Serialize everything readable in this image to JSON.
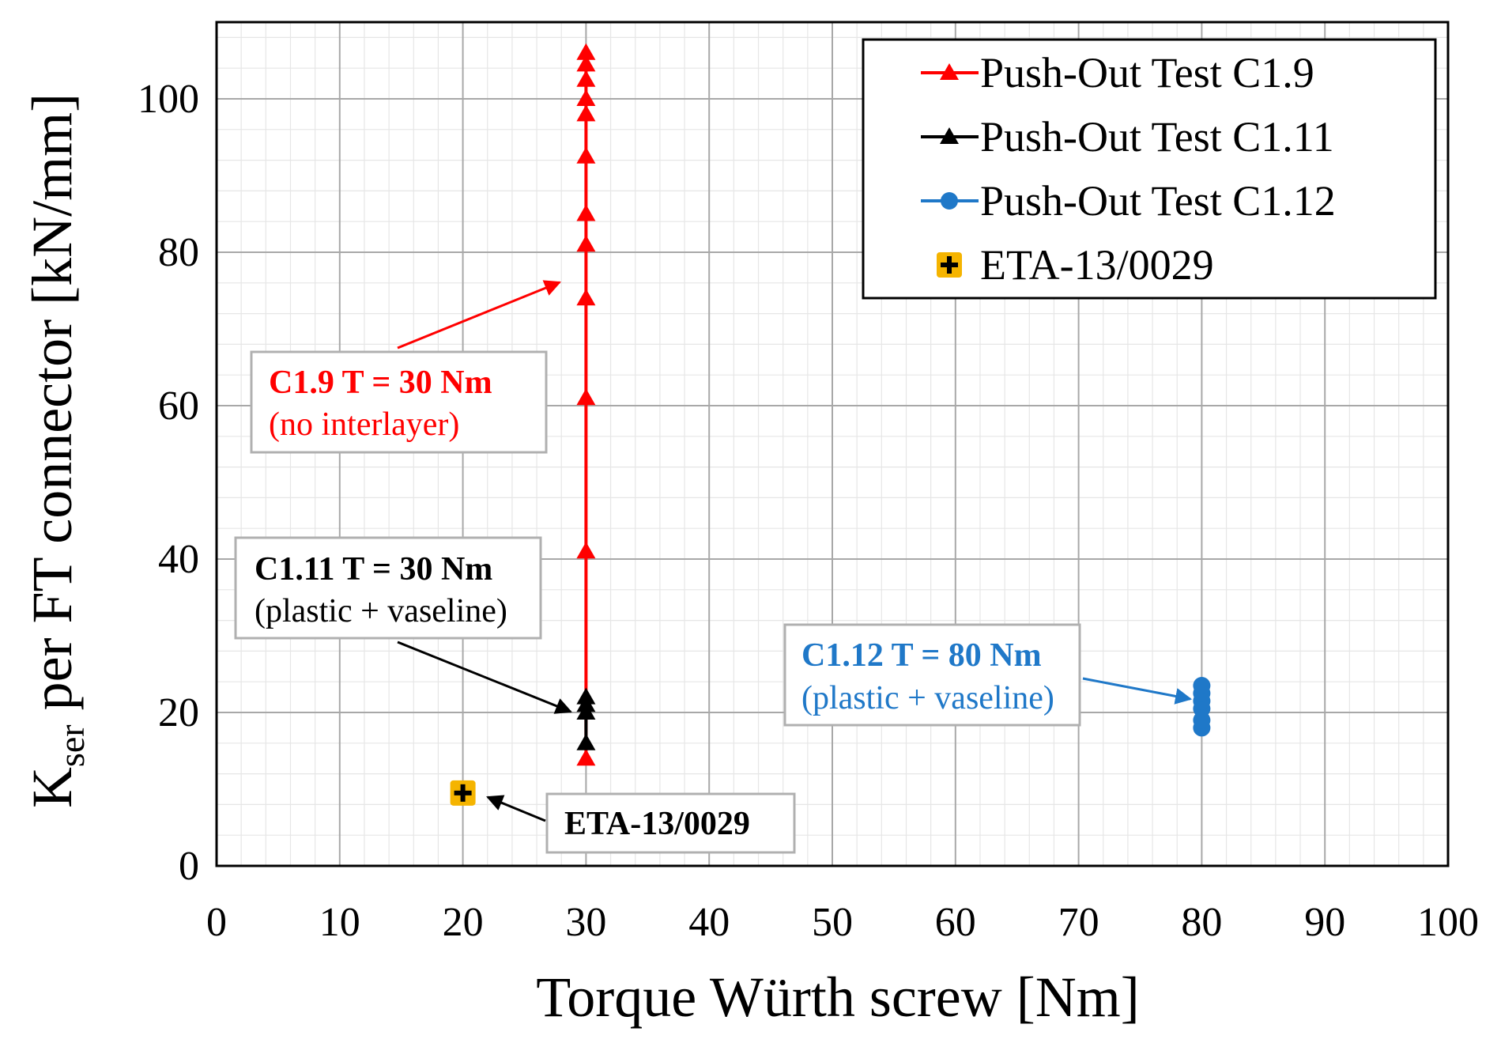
{
  "chart_data": {
    "type": "scatter",
    "title": "",
    "xlabel": "Torque Würth screw [Nm]",
    "ylabel": {
      "main": "K",
      "sub": "ser",
      "rest": " per FT connector [kN/mm]"
    },
    "xlim": [
      0,
      100
    ],
    "ylim": [
      0,
      110
    ],
    "xticks": [
      0,
      10,
      20,
      30,
      40,
      50,
      60,
      70,
      80,
      90,
      100
    ],
    "yticks": [
      0,
      20,
      40,
      60,
      80,
      100
    ],
    "grid": true,
    "legend_position": "top-right",
    "series": [
      {
        "name": "Push-Out Test C1.9",
        "color": "#ff0000",
        "marker": "triangle",
        "line": true,
        "x": [
          30,
          30,
          30,
          30,
          30,
          30,
          30,
          30,
          30,
          30,
          30,
          30
        ],
        "y": [
          14,
          41,
          61,
          74,
          81,
          85,
          92.5,
          98,
          100,
          102.5,
          104.5,
          106
        ]
      },
      {
        "name": "Push-Out Test C1.11",
        "color": "#000000",
        "marker": "triangle",
        "line": true,
        "x": [
          30,
          30,
          30,
          30
        ],
        "y": [
          16,
          20,
          21,
          22
        ]
      },
      {
        "name": "Push-Out Test C1.12",
        "color": "#1f78c8",
        "marker": "circle",
        "line": true,
        "x": [
          80,
          80,
          80,
          80,
          80,
          80
        ],
        "y": [
          18,
          19,
          20.5,
          21.5,
          22.5,
          23.5
        ]
      },
      {
        "name": "ETA-13/0029",
        "color": "#f5b400",
        "marker": "plus-square",
        "line": false,
        "x": [
          20
        ],
        "y": [
          9.5
        ]
      }
    ],
    "annotations": [
      {
        "id": "c19",
        "line1": "C1.9 T = 30 Nm",
        "line2": "(no interlayer)",
        "color": "#ff0000"
      },
      {
        "id": "c111",
        "line1": "C1.11 T = 30 Nm",
        "line2": "(plastic + vaseline)",
        "color": "#000000"
      },
      {
        "id": "c112",
        "line1": "C1.12 T = 80 Nm",
        "line2": "(plastic + vaseline)",
        "color": "#1f78c8"
      },
      {
        "id": "eta",
        "line1": "ETA-13/0029",
        "line2": "",
        "color": "#000000"
      }
    ]
  }
}
